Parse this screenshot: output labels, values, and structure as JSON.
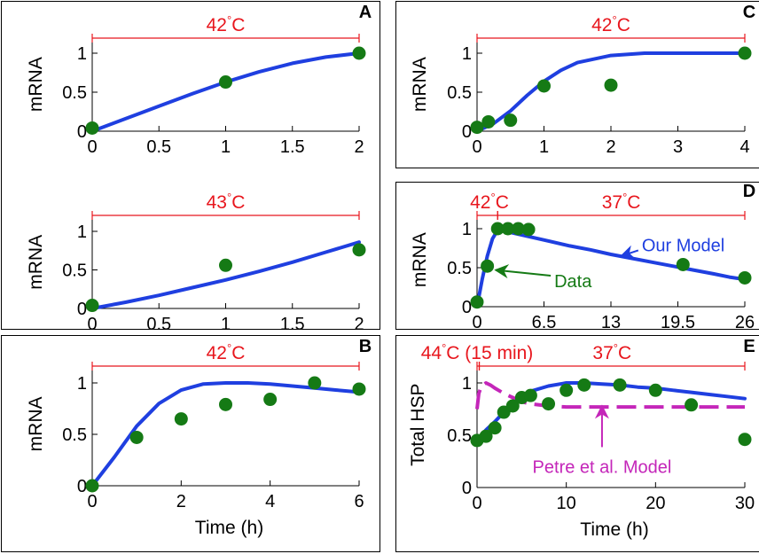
{
  "colors": {
    "model": "#1f3fe0",
    "data": "#157a15",
    "temp": "#e8161d",
    "petre": "#c426b9",
    "axis": "#000000"
  },
  "chart_data": [
    {
      "id": "A-top",
      "panel_label": "A",
      "type": "line",
      "ylabel": "mRNA",
      "xlabel": "",
      "xlim": [
        0,
        2
      ],
      "ylim": [
        0,
        1.2
      ],
      "xticks": [
        0,
        0.5,
        1,
        1.5,
        2
      ],
      "xtick_labels": [
        "0",
        "0.5",
        "1",
        "1.5",
        "2"
      ],
      "yticks": [
        0,
        0.5,
        1
      ],
      "ytick_labels": [
        "0",
        "0.5",
        "1"
      ],
      "temp_bars": [
        {
          "from": 0,
          "to": 2,
          "label": "42°C"
        }
      ],
      "model": {
        "x": [
          0,
          0.25,
          0.5,
          0.75,
          1,
          1.25,
          1.5,
          1.75,
          2
        ],
        "y": [
          0,
          0.16,
          0.32,
          0.48,
          0.63,
          0.76,
          0.87,
          0.95,
          1.0
        ]
      },
      "data_points": {
        "x": [
          0,
          1,
          2
        ],
        "y": [
          0.04,
          0.63,
          1.0
        ]
      }
    },
    {
      "id": "A-bottom",
      "panel_label": "",
      "type": "line",
      "ylabel": "mRNA",
      "xlabel": "",
      "xlim": [
        0,
        2
      ],
      "ylim": [
        0,
        1.2
      ],
      "xticks": [
        0,
        0.5,
        1,
        1.5,
        2
      ],
      "xtick_labels": [
        "0",
        "0.5",
        "1",
        "1.5",
        "2"
      ],
      "yticks": [
        0,
        0.5,
        1
      ],
      "ytick_labels": [
        "0",
        "0.5",
        "1"
      ],
      "temp_bars": [
        {
          "from": 0,
          "to": 2,
          "label": "43°C"
        }
      ],
      "model": {
        "x": [
          0,
          0.25,
          0.5,
          0.75,
          1,
          1.25,
          1.5,
          1.75,
          2
        ],
        "y": [
          0,
          0.08,
          0.17,
          0.27,
          0.37,
          0.48,
          0.6,
          0.73,
          0.86
        ]
      },
      "data_points": {
        "x": [
          0,
          1,
          2
        ],
        "y": [
          0.04,
          0.56,
          0.76
        ]
      }
    },
    {
      "id": "B",
      "panel_label": "B",
      "type": "line",
      "ylabel": "mRNA",
      "xlabel": "Time (h)",
      "xlim": [
        0,
        6
      ],
      "ylim": [
        0,
        1.2
      ],
      "xticks": [
        0,
        2,
        4,
        6
      ],
      "xtick_labels": [
        "0",
        "2",
        "4",
        "6"
      ],
      "yticks": [
        0,
        0.5,
        1
      ],
      "ytick_labels": [
        "0",
        "0.5",
        "1"
      ],
      "temp_bars": [
        {
          "from": 0,
          "to": 6,
          "label": "42°C"
        }
      ],
      "model": {
        "x": [
          0,
          0.5,
          1,
          1.5,
          2,
          2.5,
          3,
          3.5,
          4,
          4.5,
          5,
          5.5,
          6
        ],
        "y": [
          0,
          0.28,
          0.58,
          0.8,
          0.93,
          0.99,
          1.0,
          1.0,
          0.99,
          0.97,
          0.95,
          0.93,
          0.91
        ]
      },
      "data_points": {
        "x": [
          0,
          1,
          2,
          3,
          4,
          5,
          6
        ],
        "y": [
          0,
          0.47,
          0.65,
          0.79,
          0.84,
          1.0,
          0.94
        ]
      }
    },
    {
      "id": "C",
      "panel_label": "C",
      "type": "line",
      "ylabel": "mRNA",
      "xlabel": "",
      "xlim": [
        0,
        4
      ],
      "ylim": [
        0,
        1.2
      ],
      "xticks": [
        0,
        1,
        2,
        3,
        4
      ],
      "xtick_labels": [
        "0",
        "1",
        "2",
        "3",
        "4"
      ],
      "yticks": [
        0,
        0.5,
        1
      ],
      "ytick_labels": [
        "0",
        "0.5",
        "1"
      ],
      "temp_bars": [
        {
          "from": 0,
          "to": 4,
          "label": "42°C"
        }
      ],
      "model": {
        "x": [
          0,
          0.25,
          0.5,
          0.75,
          1,
          1.25,
          1.5,
          2,
          2.5,
          3,
          3.5,
          4
        ],
        "y": [
          0,
          0.1,
          0.26,
          0.46,
          0.64,
          0.78,
          0.88,
          0.97,
          1.0,
          1.0,
          1.0,
          1.0
        ]
      },
      "data_points": {
        "x": [
          0,
          0.17,
          0.5,
          1,
          2,
          4
        ],
        "y": [
          0.05,
          0.12,
          0.14,
          0.58,
          0.59,
          1.0
        ]
      }
    },
    {
      "id": "D",
      "panel_label": "D",
      "type": "line",
      "ylabel": "mRNA",
      "xlabel": "",
      "xlim": [
        0,
        26
      ],
      "ylim": [
        0,
        1.2
      ],
      "xticks": [
        0,
        6.5,
        13,
        19.5,
        26
      ],
      "xtick_labels": [
        "0",
        "6.5",
        "13",
        "19.5",
        "26"
      ],
      "yticks": [
        0,
        0.5,
        1
      ],
      "ytick_labels": [
        "0",
        "0.5",
        "1"
      ],
      "temp_bars": [
        {
          "from": 0,
          "to": 2,
          "label": "42°C"
        },
        {
          "from": 2,
          "to": 26,
          "label": "37°C"
        }
      ],
      "model": {
        "x": [
          0,
          0.5,
          1,
          1.5,
          2,
          3,
          5,
          7,
          9,
          11,
          13,
          15,
          17,
          19,
          21,
          23,
          24.5,
          26
        ],
        "y": [
          0,
          0.35,
          0.65,
          0.87,
          0.98,
          0.96,
          0.9,
          0.84,
          0.78,
          0.73,
          0.67,
          0.62,
          0.57,
          0.52,
          0.47,
          0.42,
          0.38,
          0.35
        ]
      },
      "data_points": {
        "x": [
          0,
          1,
          2,
          3,
          4,
          5,
          20,
          26
        ],
        "y": [
          0.06,
          0.52,
          1.0,
          1.0,
          1.0,
          0.99,
          0.54,
          0.37
        ]
      },
      "annotations": [
        {
          "text": "Our Model",
          "series": "model",
          "text_at": [
            16,
            0.79
          ],
          "arrow_to": [
            14,
            0.65
          ]
        },
        {
          "text": "Data",
          "series": "data",
          "text_at": [
            7.5,
            0.33
          ],
          "arrow_to": [
            1.8,
            0.47
          ]
        }
      ]
    },
    {
      "id": "E",
      "panel_label": "E",
      "type": "line",
      "ylabel": "Total HSP",
      "xlabel": "Time (h)",
      "xlim": [
        0,
        30
      ],
      "ylim": [
        0,
        1.2
      ],
      "xticks": [
        0,
        10,
        20,
        30
      ],
      "xtick_labels": [
        "0",
        "10",
        "20",
        "30"
      ],
      "yticks": [
        0,
        0.5,
        1
      ],
      "ytick_labels": [
        "0",
        "0.5",
        "1"
      ],
      "temp_bars": [
        {
          "from": 0,
          "to": 0.25,
          "label": "44°C (15 min)"
        },
        {
          "from": 0.25,
          "to": 30,
          "label": "37°C"
        }
      ],
      "model": {
        "x": [
          0,
          0.5,
          1,
          2,
          3,
          4,
          5,
          6,
          8,
          10,
          12,
          14,
          16,
          18,
          20,
          22,
          24,
          26,
          28,
          30
        ],
        "y": [
          0.45,
          0.5,
          0.55,
          0.63,
          0.72,
          0.8,
          0.87,
          0.92,
          0.97,
          1.0,
          1.0,
          0.99,
          0.98,
          0.96,
          0.95,
          0.93,
          0.91,
          0.89,
          0.87,
          0.85
        ]
      },
      "petre_model": {
        "x": [
          0,
          0.2,
          0.5,
          1,
          1.5,
          2,
          3,
          4,
          5,
          6,
          8,
          10,
          15,
          20,
          25,
          30
        ],
        "y": [
          0.75,
          0.9,
          0.97,
          1.0,
          0.98,
          0.95,
          0.9,
          0.86,
          0.82,
          0.8,
          0.78,
          0.77,
          0.77,
          0.77,
          0.77,
          0.77
        ]
      },
      "data_points": {
        "x": [
          0,
          1,
          2,
          3,
          4,
          5,
          6,
          8,
          10,
          12,
          16,
          20,
          24,
          30
        ],
        "y": [
          0.45,
          0.49,
          0.57,
          0.72,
          0.78,
          0.86,
          0.88,
          0.8,
          0.93,
          0.98,
          0.98,
          0.93,
          0.79,
          0.46
        ]
      },
      "annotations": [
        {
          "text": "Petre et al. Model",
          "series": "petre_model",
          "text_at": [
            14,
            0.2
          ],
          "arrow_to": [
            14,
            0.78
          ]
        }
      ]
    }
  ]
}
